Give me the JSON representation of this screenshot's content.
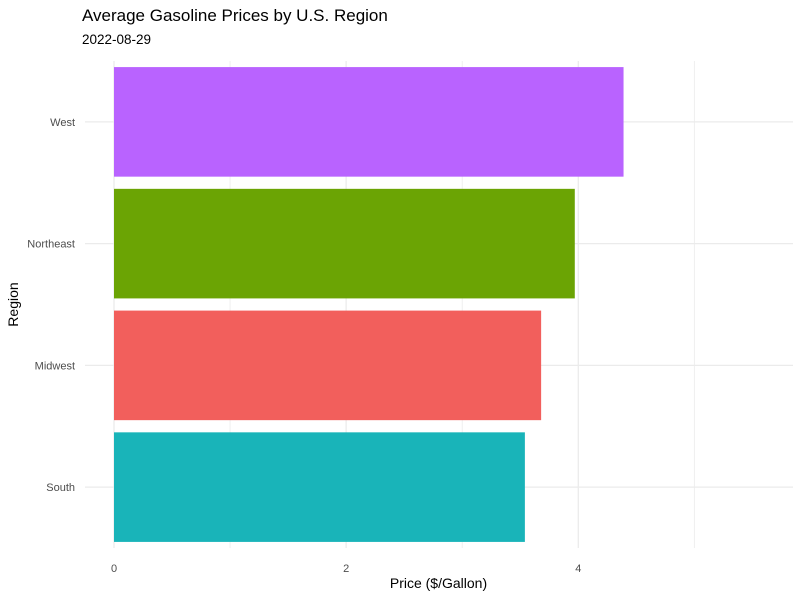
{
  "chart_data": {
    "type": "bar",
    "orientation": "horizontal",
    "title": "Average Gasoline Prices by U.S. Region",
    "subtitle": "2022-08-29",
    "xlabel": "Price ($/Gallon)",
    "ylabel": "Region",
    "categories": [
      "South",
      "Midwest",
      "Northeast",
      "West"
    ],
    "values": [
      3.54,
      3.68,
      3.97,
      4.39
    ],
    "colors": [
      "#19B4B9",
      "#F25F5C",
      "#6BA404",
      "#B963FF"
    ],
    "xlim": [
      0,
      5.85
    ],
    "x_ticks": [
      0,
      2,
      4
    ],
    "x_minor_gridlines": [
      1,
      3,
      5
    ],
    "grid": true,
    "legend": "none"
  }
}
